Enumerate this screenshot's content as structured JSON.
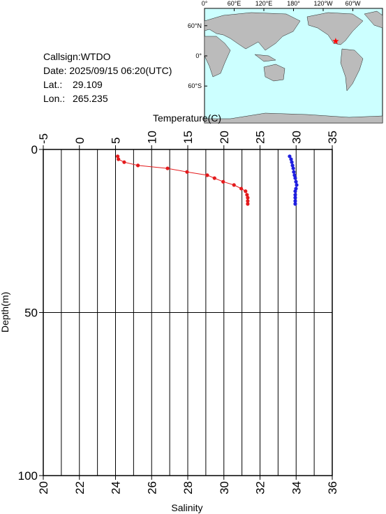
{
  "info": {
    "callsign": "Callsign:WTDO",
    "date": "Date:  2025/09/15 06:20(UTC)",
    "lat_label": "Lat.:",
    "lat": 29.109,
    "lon_label": "Lon.:",
    "lon": 265.235
  },
  "map": {
    "lonlim": [
      0,
      360
    ],
    "lonticks": [
      {
        "value": 0,
        "label": "0°"
      },
      {
        "value": 60,
        "label": "60°E"
      },
      {
        "value": 120,
        "label": "120°E"
      },
      {
        "value": 180,
        "label": "180°"
      },
      {
        "value": 240,
        "label": "120°W"
      },
      {
        "value": 300,
        "label": "60°W"
      }
    ],
    "latticks": [
      {
        "value": 60,
        "label": "60°N"
      },
      {
        "value": 0,
        "label": "0°"
      },
      {
        "value": -60,
        "label": "60°S"
      }
    ],
    "marker_color": "#ff0000"
  },
  "chart_data": {
    "type": "line",
    "x2label": "Temperature(C)",
    "xlabel": "Salinity",
    "ylabel": "Depth(m)",
    "ylim": [
      0,
      100
    ],
    "yticks": [
      0,
      50,
      100
    ],
    "ygrid": [
      50
    ],
    "xlim": [
      20,
      36
    ],
    "xticks": [
      20,
      22,
      24,
      26,
      28,
      30,
      32,
      34,
      36
    ],
    "xgrid": [
      21,
      22,
      23,
      24,
      25,
      26,
      27,
      28,
      29,
      30,
      31,
      32,
      33,
      34,
      35
    ],
    "x2lim": [
      -5,
      35
    ],
    "x2ticks": [
      -5,
      0,
      5,
      10,
      15,
      20,
      25,
      30,
      35
    ],
    "series": [
      {
        "color": "#e41a1c",
        "axis": "x2",
        "depth": [
          2.1,
          3.0,
          3.9,
          4.9,
          5.8,
          6.9,
          7.9,
          8.8,
          9.9,
          10.9,
          12.0,
          12.8,
          13.9,
          14.8,
          15.8,
          16.7
        ],
        "values": [
          5.3,
          5.4,
          6.2,
          8.1,
          12.2,
          14.9,
          17.7,
          18.7,
          19.9,
          21.4,
          22.4,
          23.0,
          23.2,
          23.3,
          23.3,
          23.3
        ]
      },
      {
        "color": "#1f1fe0",
        "axis": "x",
        "depth": [
          2.1,
          3.0,
          3.9,
          4.9,
          5.8,
          6.9,
          7.9,
          8.8,
          9.9,
          10.9,
          12.0,
          12.8,
          13.9,
          14.8,
          15.8,
          16.7
        ],
        "values": [
          33.64,
          33.72,
          33.76,
          33.8,
          33.84,
          33.87,
          33.91,
          33.95,
          33.99,
          34.03,
          33.99,
          33.95,
          33.95,
          33.95,
          33.95,
          33.95
        ]
      }
    ]
  }
}
